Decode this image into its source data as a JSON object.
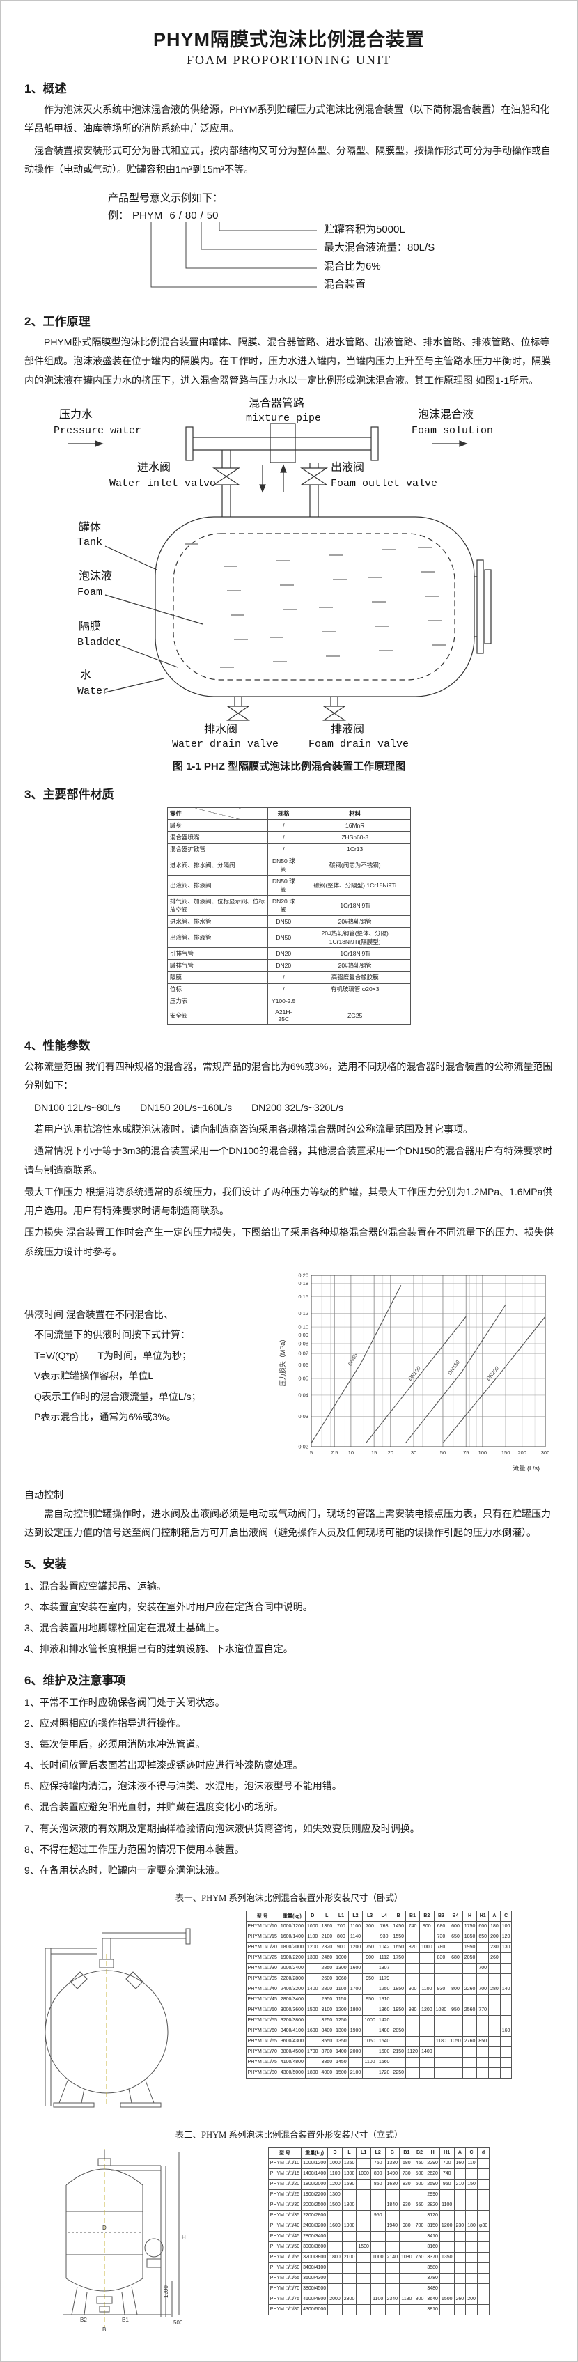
{
  "page": {
    "title": "PHYM隔膜式泡沫比例混合装置",
    "subtitle": "FOAM PROPORTIONING UNIT"
  },
  "s1": {
    "heading": "1、概述",
    "p1": "作为泡沫灭火系统中泡沫混合液的供给源，PHYM系列贮罐压力式泡沫比例混合装置（以下简称混合装置）在油船和化学品船甲板、油库等场所的消防系统中广泛应用。",
    "p2": "混合装置按安装形式可分为卧式和立式，按内部结构又可分为整体型、分隔型、隔膜型，按操作形式可分为手动操作或自动操作（电动或气动）。贮罐容积由1m³到15m³不等。"
  },
  "model": {
    "intro": "产品型号意义示例如下：",
    "example_prefix": "例：",
    "tokens": [
      "PHYM",
      "6",
      "80",
      "50"
    ],
    "labels": [
      "贮罐容积为5000L",
      "最大混合液流量：80L/S",
      "混合比为6%",
      "混合装置"
    ]
  },
  "s2": {
    "heading": "2、工作原理",
    "p1": "PHYM卧式隔膜型泡沫比例混合装置由罐体、隔膜、混合器管路、进水管路、出液管路、排水管路、排液管路、位标等部件组成。泡沫液盛装在位于罐内的隔膜内。在工作时，压力水进入罐内，当罐内压力上升至与主管路水压力平衡时，隔膜内的泡沫液在罐内压力水的挤压下，进入混合器管路与压力水以一定比例形成泡沫混合液。其工作原理图 如图1-1所示。"
  },
  "diagram": {
    "pressure_water_cn": "压力水",
    "pressure_water_en": "Pressure water",
    "mixture_pipe_cn": "混合器管路",
    "mixture_pipe_en": "mixture pipe",
    "foam_solution_cn": "泡沫混合液",
    "foam_solution_en": "Foam solution",
    "inlet_valve_cn": "进水阀",
    "inlet_valve_en": "Water inlet valve",
    "outlet_valve_cn": "出液阀",
    "outlet_valve_en": "Foam outlet valve",
    "tank_cn": "罐体",
    "tank_en": "Tank",
    "foam_cn": "泡沫液",
    "foam_en": "Foam",
    "bladder_cn": "隔膜",
    "bladder_en": "Bladder",
    "water_cn": "水",
    "water_en": "Water",
    "water_drain_cn": "排水阀",
    "water_drain_en": "Water drain valve",
    "foam_drain_cn": "排液阀",
    "foam_drain_en": "Foam drain valve",
    "caption": "图 1-1 PHZ 型隔膜式泡沫比例混合装置工作原理图"
  },
  "s3": {
    "heading": "3、主要部件材质"
  },
  "s4": {
    "heading": "4、性能参数",
    "p1": "公称流量范围  我们有四种规格的混合器，常规产品的混合比为6%或3%，选用不同规格的混合器时混合装置的公称流量范围分别如下：",
    "p2": "DN100  12L/s~80L/s　　DN150  20L/s~160L/s　　DN200  32L/s~320L/s",
    "p3": "若用户选用抗溶性水成膜泡沫液时，请向制造商咨询采用各规格混合器时的公称流量范围及其它事项。",
    "p4": "通常情况下小于等于3m3的混合装置采用一个DN100的混合器，其他混合装置采用一个DN150的混合器用户有特殊要求时请与制造商联系。",
    "p5": "最大工作压力  根据消防系统通常的系统压力，我们设计了两种压力等级的贮罐，其最大工作压力分别为1.2MPa、1.6MPa供用户选用。用户有特殊要求时请与制造商联系。",
    "p6": "压力损失  混合装置工作时会产生一定的压力损失，下图给出了采用各种规格混合器的混合装置在不同流量下的压力、损失供系统压力设计时参考。",
    "supply": [
      "供液时间  混合装置在不同混合比、",
      "不同流量下的供液时间按下式计算：",
      "T=V/(Q*p)　　T为时间，单位为秒；",
      "V表示贮罐操作容积，单位L",
      "Q表示工作时的混合液流量，单位L/s；",
      "P表示混合比，通常为6%或3%。"
    ],
    "auto_heading": "自动控制",
    "auto_p": "需自动控制贮罐操作时，进水阀及出液阀必须是电动或气动阀门，现场的管路上需安装电接点压力表，只有在贮罐压力达到设定压力值的信号送至阀门控制箱后方可开启出液阀（避免操作人员及任何现场可能的误操作引起的压力水倒灌）。"
  },
  "s5": {
    "heading": "5、安装",
    "items": [
      "1、混合装置应空罐起吊、运输。",
      "2、本装置宜安装在室内，安装在室外时用户应在定货合同中说明。",
      "3、混合装置用地脚螺栓固定在混凝土基础上。",
      "4、排液和排水管长度根据已有的建筑设施、下水道位置自定。"
    ]
  },
  "s6": {
    "heading": "6、维护及注意事项",
    "items": [
      "1、平常不工作时应确保各阀门处于关闭状态。",
      "2、应对照相应的操作指导进行操作。",
      "3、每次使用后，必须用消防水冲洗管道。",
      "4、长时间放置后表面若出现掉漆或锈迹时应进行补漆防腐处理。",
      "5、应保持罐内清洁，泡沫液不得与油类、水混用，泡沫液型号不能用错。",
      "6、混合装置应避免阳光直射，并贮藏在温度变化小的场所。",
      "7、有关泡沫液的有效期及定期抽样检验请向泡沫液供货商咨询，如失效变质则应及时调换。",
      "8、不得在超过工作压力范围的情况下使用本装置。",
      "9、在备用状态时，贮罐内一定要充满泡沫液。"
    ]
  },
  "tables": {
    "materials": {
      "headers": [
        "零件",
        "规格",
        "材料"
      ],
      "rows": [
        [
          "罐身",
          "/",
          "16MnR"
        ],
        [
          "混合器喷嘴",
          "/",
          "ZHSn60-3"
        ],
        [
          "混合器扩散管",
          "/",
          "1Cr13"
        ],
        [
          "进水阀、排水阀、分隔阀",
          "DN50 球阀",
          "碳钢(阀芯为不锈钢)"
        ],
        [
          "出液阀、排液阀",
          "DN50 球阀",
          "碳钢(整体、分隔型) 1Cr18Ni9Ti"
        ],
        [
          "排气阀、加液阀、位标显示阀、位标放空阀",
          "DN20 球阀",
          "1Cr18Ni9Ti"
        ],
        [
          "进水管、排水管",
          "DN50",
          "20#热轧钢管"
        ],
        [
          "出液管、排液管",
          "DN50",
          "20#热轧钢管(整体、分隔) 1Cr18Ni9Ti(隔膜型)"
        ],
        [
          "引排气管",
          "DN20",
          "1Cr18Ni9Ti"
        ],
        [
          "罐排气管",
          "DN20",
          "20#热轧钢管"
        ],
        [
          "隔膜",
          "/",
          "高强度复合橡胶膜"
        ],
        [
          "位标",
          "/",
          "有机玻璃管 φ20×3"
        ],
        [
          "压力表",
          "Y100-2.5",
          ""
        ],
        [
          "安全阀",
          "A21H-25C",
          "ZG25"
        ]
      ]
    },
    "t1": {
      "caption": "表一、PHYM 系列泡沫比例混合装置外形安装尺寸（卧式）",
      "headers": [
        "型  号",
        "重量(kg)",
        "D",
        "L",
        "L1",
        "L2",
        "L3",
        "L4",
        "B",
        "B1",
        "B2",
        "B3",
        "B4",
        "H",
        "H1",
        "A",
        "C"
      ],
      "rows": [
        [
          "PHYM □/□/10",
          "1000/1200",
          "1000",
          "1360",
          "700",
          "1100",
          "700",
          "763",
          "1450",
          "740",
          "900",
          "680",
          "600",
          "1750",
          "600",
          "180",
          "100"
        ],
        [
          "PHYM □/□/15",
          "1600/1400",
          "1100",
          "2100",
          "800",
          "1140",
          "",
          "930",
          "1550",
          "",
          "",
          "730",
          "650",
          "1850",
          "650",
          "200",
          "120"
        ],
        [
          "PHYM □/□/20",
          "1800/2000",
          "1200",
          "2320",
          "900",
          "1200",
          "750",
          "1042",
          "1650",
          "820",
          "1000",
          "780",
          "",
          "1950",
          "",
          "230",
          "130"
        ],
        [
          "PHYM □/□/25",
          "1900/2200",
          "1300",
          "2460",
          "1000",
          "",
          "900",
          "1112",
          "1750",
          "",
          "",
          "830",
          "680",
          "2050",
          "",
          "260",
          ""
        ],
        [
          "PHYM □/□/30",
          "2000/2400",
          "",
          "2850",
          "1300",
          "1600",
          "",
          "1307",
          "",
          "",
          "",
          "",
          "",
          "",
          "700",
          "",
          ""
        ],
        [
          "PHYM □/□/35",
          "2200/2800",
          "",
          "2600",
          "1060",
          "",
          "950",
          "1179",
          "",
          "",
          "",
          "",
          "",
          "",
          "",
          "",
          ""
        ],
        [
          "PHYM □/□/40",
          "2400/3200",
          "1400",
          "2800",
          "1100",
          "1700",
          "",
          "1250",
          "1850",
          "900",
          "1100",
          "930",
          "800",
          "2260",
          "700",
          "280",
          "140"
        ],
        [
          "PHYM □/□/45",
          "2800/3400",
          "",
          "2950",
          "1150",
          "",
          "950",
          "1310",
          "",
          "",
          "",
          "",
          "",
          "",
          "",
          "",
          ""
        ],
        [
          "PHYM □/□/50",
          "3000/3600",
          "1500",
          "3100",
          "1200",
          "1800",
          "",
          "1360",
          "1950",
          "980",
          "1200",
          "1080",
          "950",
          "2560",
          "770",
          "",
          ""
        ],
        [
          "PHYM □/□/55",
          "3200/3800",
          "",
          "3250",
          "1250",
          "",
          "1000",
          "1420",
          "",
          "",
          "",
          "",
          "",
          "",
          "",
          "",
          ""
        ],
        [
          "PHYM □/□/60",
          "3400/4100",
          "1600",
          "3400",
          "1300",
          "1900",
          "",
          "1480",
          "2050",
          "",
          "",
          "",
          "",
          "",
          "",
          "",
          "160"
        ],
        [
          "PHYM □/□/65",
          "3600/4300",
          "",
          "3550",
          "1350",
          "",
          "1050",
          "1540",
          "",
          "",
          "",
          "1180",
          "1050",
          "2760",
          "850",
          "",
          ""
        ],
        [
          "PHYM □/□/70",
          "3800/4500",
          "1700",
          "3700",
          "1400",
          "2000",
          "",
          "1600",
          "2150",
          "1120",
          "1400",
          "",
          "",
          "",
          "",
          "",
          ""
        ],
        [
          "PHYM □/□/75",
          "4100/4800",
          "",
          "3850",
          "1450",
          "",
          "1100",
          "1660",
          "",
          "",
          "",
          "",
          "",
          "",
          "",
          "",
          ""
        ],
        [
          "PHYM □/□/80",
          "4300/5000",
          "1800",
          "4000",
          "1500",
          "2100",
          "",
          "1720",
          "2250",
          "",
          "",
          "",
          "",
          "",
          "",
          "",
          ""
        ]
      ]
    },
    "t2": {
      "caption": "表二、PHYM 系列泡沫比例混合装置外形安装尺寸（立式）",
      "headers": [
        "型  号",
        "重量(kg)",
        "D",
        "L",
        "L1",
        "L2",
        "B",
        "B1",
        "B2",
        "H",
        "H1",
        "A",
        "C",
        "d"
      ],
      "rows": [
        [
          "PHYM □/□/10",
          "1000/1200",
          "1000",
          "1250",
          "",
          "750",
          "1330",
          "680",
          "450",
          "2290",
          "700",
          "160",
          "110",
          ""
        ],
        [
          "PHYM □/□/15",
          "1400/1400",
          "1100",
          "1390",
          "1000",
          "800",
          "1490",
          "730",
          "500",
          "2620",
          "740",
          "",
          "",
          ""
        ],
        [
          "PHYM □/□/20",
          "1800/2000",
          "1200",
          "1590",
          "",
          "850",
          "1630",
          "830",
          "600",
          "2590",
          "950",
          "210",
          "150",
          ""
        ],
        [
          "PHYM □/□/25",
          "1900/2200",
          "1300",
          "",
          "",
          "",
          "",
          "",
          "",
          "2990",
          "",
          "",
          "",
          ""
        ],
        [
          "PHYM □/□/30",
          "2000/2500",
          "1500",
          "1800",
          "",
          "",
          "1840",
          "930",
          "650",
          "2820",
          "1100",
          "",
          "",
          ""
        ],
        [
          "PHYM □/□/35",
          "2200/2800",
          "",
          "",
          "",
          "950",
          "",
          "",
          "",
          "3120",
          "",
          "",
          "",
          ""
        ],
        [
          "PHYM □/□/40",
          "2400/3200",
          "1600",
          "1900",
          "",
          "",
          "1940",
          "980",
          "700",
          "3150",
          "1200",
          "230",
          "180",
          "φ30"
        ],
        [
          "PHYM □/□/45",
          "2800/3400",
          "",
          "",
          "",
          "",
          "",
          "",
          "",
          "3410",
          "",
          "",
          "",
          ""
        ],
        [
          "PHYM □/□/50",
          "3000/3600",
          "",
          "",
          "1500",
          "",
          "",
          "",
          "",
          "3160",
          "",
          "",
          "",
          ""
        ],
        [
          "PHYM □/□/55",
          "3200/3800",
          "1800",
          "2100",
          "",
          "1000",
          "2140",
          "1080",
          "750",
          "3370",
          "1350",
          "",
          "",
          ""
        ],
        [
          "PHYM □/□/60",
          "3400/4100",
          "",
          "",
          "",
          "",
          "",
          "",
          "",
          "3580",
          "",
          "",
          "",
          ""
        ],
        [
          "PHYM □/□/65",
          "3600/4300",
          "",
          "",
          "",
          "",
          "",
          "",
          "",
          "3780",
          "",
          "",
          "",
          ""
        ],
        [
          "PHYM □/□/70",
          "3800/4500",
          "",
          "",
          "",
          "",
          "",
          "",
          "",
          "3480",
          "",
          "",
          "",
          ""
        ],
        [
          "PHYM □/□/75",
          "4100/4800",
          "2000",
          "2300",
          "",
          "1100",
          "2340",
          "1180",
          "800",
          "3640",
          "1500",
          "260",
          "200",
          ""
        ],
        [
          "PHYM □/□/80",
          "4300/5000",
          "",
          "",
          "",
          "",
          "",
          "",
          "",
          "3810",
          "",
          "",
          "",
          ""
        ]
      ]
    }
  },
  "drawings": {
    "vertical_dims": {
      "D": "D",
      "H": "H",
      "B": "B",
      "B1": "B1",
      "B2": "B2",
      "d1200": "1200",
      "d500": "500"
    }
  },
  "chart_data": {
    "type": "line",
    "title": "",
    "xlabel": "流量 (L/s)",
    "ylabel": "压力损失（MPa）",
    "xscale": "log",
    "yscale": "log",
    "xlim": [
      5,
      300
    ],
    "ylim": [
      0.02,
      0.2
    ],
    "xticks": [
      5,
      7.5,
      10,
      15,
      20,
      30,
      50,
      75,
      100,
      150,
      200,
      300
    ],
    "yticks": [
      0.02,
      0.03,
      0.04,
      0.05,
      0.06,
      0.07,
      0.08,
      0.09,
      0.1,
      0.12,
      0.15,
      0.18,
      0.2
    ],
    "grid": true,
    "legend": "inline-labels",
    "series": [
      {
        "name": "DN65",
        "points": [
          [
            5,
            0.021
          ],
          [
            12,
            0.062
          ],
          [
            24,
            0.175
          ]
        ]
      },
      {
        "name": "DN100",
        "points": [
          [
            13,
            0.021
          ],
          [
            35,
            0.055
          ],
          [
            75,
            0.115
          ]
        ]
      },
      {
        "name": "DN150",
        "points": [
          [
            26,
            0.021
          ],
          [
            70,
            0.055
          ],
          [
            150,
            0.135
          ]
        ]
      },
      {
        "name": "DN200",
        "points": [
          [
            50,
            0.021
          ],
          [
            140,
            0.055
          ],
          [
            300,
            0.115
          ]
        ]
      }
    ]
  }
}
